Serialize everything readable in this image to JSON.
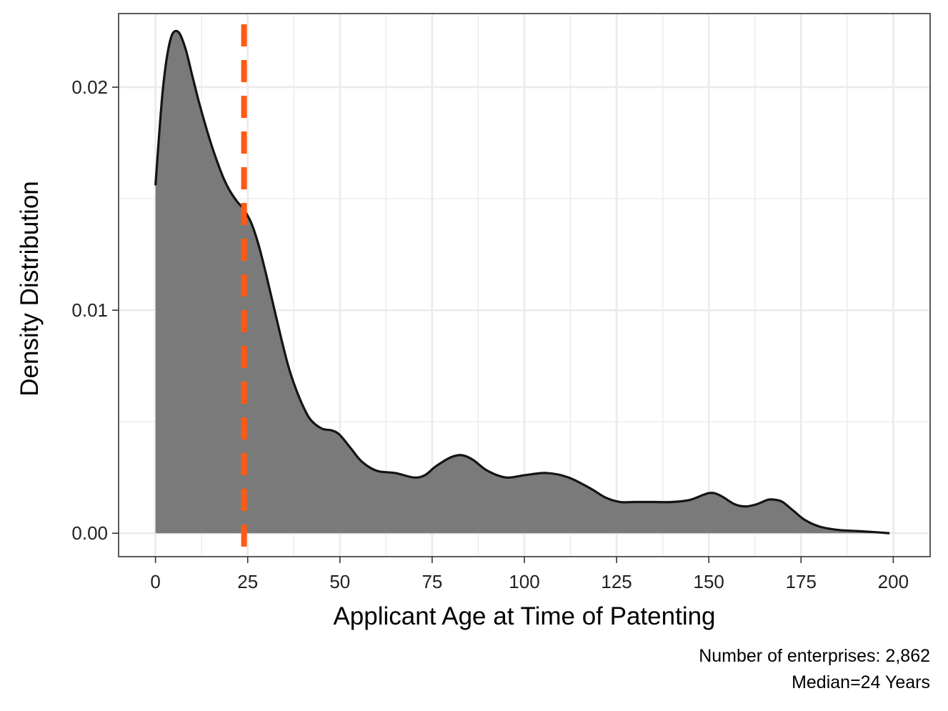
{
  "chart_data": {
    "type": "area",
    "xlabel": "Applicant Age at Time of Patenting",
    "ylabel": "Density Distribution",
    "xlim": [
      -10,
      210
    ],
    "ylim": [
      -0.00105,
      0.0233
    ],
    "x_ticks": [
      0,
      25,
      50,
      75,
      100,
      125,
      150,
      175,
      200
    ],
    "x_tick_labels": [
      "0",
      "25",
      "50",
      "75",
      "100",
      "125",
      "150",
      "175",
      "200"
    ],
    "y_ticks": [
      0,
      0.01,
      0.02
    ],
    "y_tick_labels": [
      "0.00",
      "0.01",
      "0.02"
    ],
    "grid": true,
    "series": [
      {
        "x": [
          0,
          2,
          4,
          6,
          8,
          10,
          12,
          15,
          18,
          20,
          22,
          24,
          26,
          28,
          30,
          32,
          34,
          36,
          38,
          40,
          42,
          45,
          48,
          50,
          53,
          56,
          60,
          65,
          70,
          73,
          76,
          80,
          83,
          86,
          90,
          95,
          100,
          106,
          112,
          118,
          122,
          126,
          130,
          135,
          140,
          145,
          150,
          153,
          157,
          160,
          163,
          166,
          168,
          170,
          173,
          176,
          180,
          185,
          190,
          195,
          199
        ],
        "y": [
          0.0156,
          0.0199,
          0.0221,
          0.0225,
          0.0218,
          0.0205,
          0.0192,
          0.0175,
          0.0161,
          0.0154,
          0.0149,
          0.0145,
          0.0139,
          0.0129,
          0.0116,
          0.0102,
          0.0088,
          0.0075,
          0.0065,
          0.0057,
          0.0051,
          0.0047,
          0.0046,
          0.0044,
          0.0038,
          0.0032,
          0.0028,
          0.0027,
          0.0025,
          0.0026,
          0.003,
          0.0034,
          0.0035,
          0.0033,
          0.0028,
          0.0025,
          0.0026,
          0.0027,
          0.0025,
          0.002,
          0.0016,
          0.0014,
          0.0014,
          0.0014,
          0.0014,
          0.0015,
          0.0018,
          0.0017,
          0.0013,
          0.0012,
          0.0013,
          0.0015,
          0.0015,
          0.0014,
          0.001,
          0.0006,
          0.0003,
          0.00015,
          0.0001,
          5e-05,
          0.0
        ],
        "fill": "#7a7a7a",
        "line_color": "#141414"
      }
    ],
    "reference_line": {
      "x": 24,
      "color": "#ff5a12",
      "style": "dashed"
    },
    "captions": [
      "Number of enterprises: 2,862",
      "Median=24 Years"
    ]
  }
}
